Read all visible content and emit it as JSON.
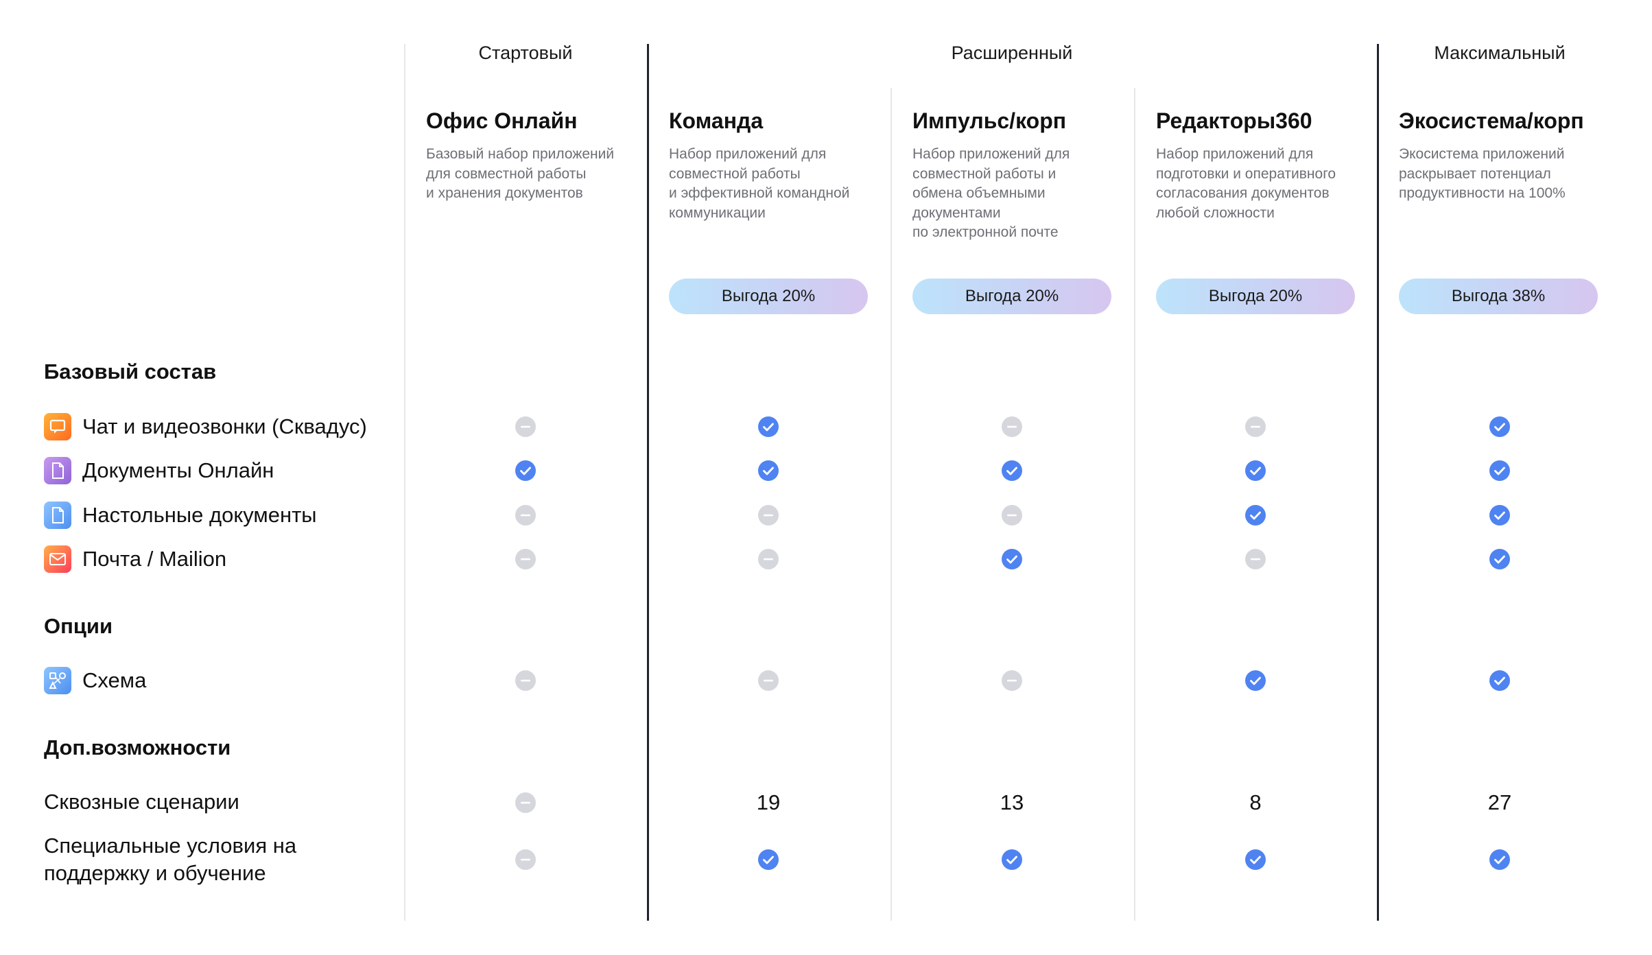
{
  "tiers": {
    "start": "Стартовый",
    "extended": "Расширенный",
    "max": "Максимальный"
  },
  "plans": [
    {
      "name": "Офис Онлайн",
      "description": "Базовый набор приложений\nдля совместной работы\nи хранения документов",
      "badge": ""
    },
    {
      "name": "Команда",
      "description": "Набор приложений для\nсовместной работы\nи эффективной командной\nкоммуникации",
      "badge": "Выгода 20%"
    },
    {
      "name": "Импульс/корп",
      "description": "Набор приложений для\nсовместной работы и\nобмена объемными\nдокументами\nпо электронной почте",
      "badge": "Выгода 20%"
    },
    {
      "name": "Редакторы360",
      "description": "Набор приложений для\nподготовки и оперативного\nсогласования документов\nлюбой сложности",
      "badge": "Выгода 20%"
    },
    {
      "name": "Экосистема/корп",
      "description": "Экосистема приложений\nраскрывает потенциал\nпродуктивности на 100%",
      "badge": "Выгода 38%"
    }
  ],
  "sections": {
    "base": "Базовый состав",
    "options": "Опции",
    "extra": "Доп.возможности"
  },
  "features": {
    "chat": {
      "label": "Чат и видеозвонки (Сквадус)",
      "icon": "chat-app-icon",
      "values": [
        false,
        true,
        false,
        false,
        true
      ]
    },
    "docs_online": {
      "label": "Документы Онлайн",
      "icon": "docs-online-app-icon",
      "values": [
        true,
        true,
        true,
        true,
        true
      ]
    },
    "desktop_docs": {
      "label": "Настольные документы",
      "icon": "desktop-docs-app-icon",
      "values": [
        false,
        false,
        false,
        true,
        true
      ]
    },
    "mail": {
      "label": "Почта / Mailion",
      "icon": "mail-app-icon",
      "values": [
        false,
        false,
        true,
        false,
        true
      ]
    },
    "schema": {
      "label": "Схема",
      "icon": "schema-app-icon",
      "values": [
        false,
        false,
        false,
        true,
        true
      ]
    },
    "scenarios": {
      "label": "Сквозные сценарии",
      "values": [
        null,
        "19",
        "13",
        "8",
        "27"
      ]
    },
    "support": {
      "label": "Специальные условия на\nподдержку и обучение",
      "values": [
        false,
        true,
        true,
        true,
        true
      ]
    }
  },
  "colors": {
    "check": "#4f83f1",
    "dash": "#d5d7dc",
    "divider_thick": "#1f2430",
    "divider_thin": "#e7e7ea"
  }
}
